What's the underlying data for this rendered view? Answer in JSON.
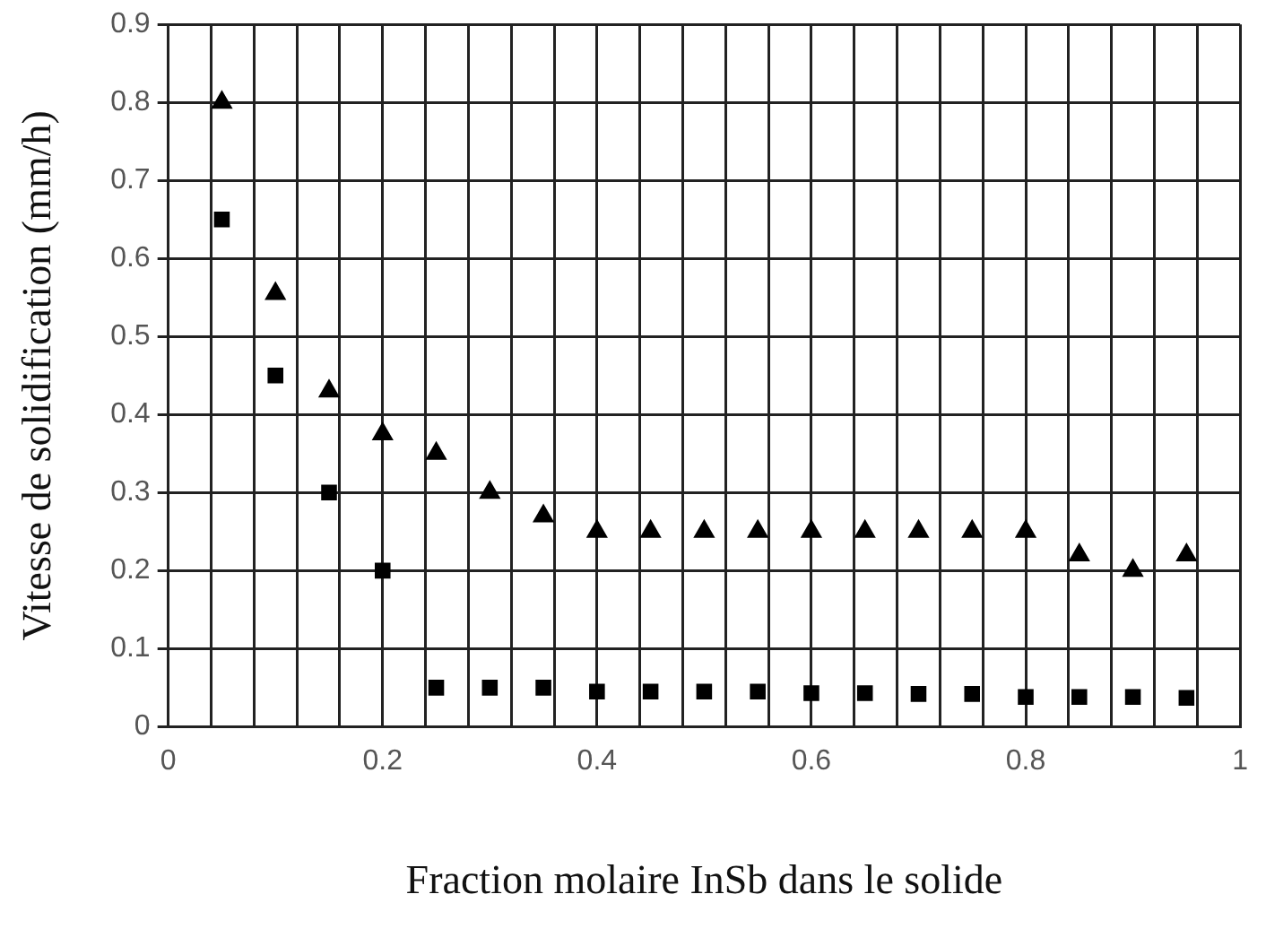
{
  "chart_data": {
    "type": "scatter",
    "xlabel": "Fraction molaire InSb dans le solide",
    "ylabel": "Vitesse de solidification (mm/h)",
    "x": [
      0.05,
      0.1,
      0.15,
      0.2,
      0.25,
      0.3,
      0.35,
      0.4,
      0.45,
      0.5,
      0.55,
      0.6,
      0.65,
      0.7,
      0.75,
      0.8,
      0.85,
      0.9,
      0.95
    ],
    "series": [
      {
        "color": "#000000",
        "marker": "triangle",
        "values": [
          0.8,
          0.555,
          0.43,
          0.375,
          0.35,
          0.3,
          0.27,
          0.25,
          0.25,
          0.25,
          0.25,
          0.25,
          0.25,
          0.25,
          0.25,
          0.25,
          0.22,
          0.2,
          0.22
        ]
      },
      {
        "color": "#000000",
        "marker": "square",
        "values": [
          0.65,
          0.45,
          0.3,
          0.2,
          0.05,
          0.05,
          0.05,
          0.045,
          0.045,
          0.045,
          0.045,
          0.043,
          0.043,
          0.042,
          0.042,
          0.038,
          0.038,
          0.038,
          0.037
        ]
      }
    ],
    "xlim": [
      0,
      1
    ],
    "xticks": [
      0,
      {
        "value": 0.04,
        "label": null
      },
      {
        "value": 0.08,
        "label": null
      },
      {
        "value": 0.12,
        "label": null
      },
      {
        "value": 0.16,
        "label": null
      },
      0.2,
      {
        "value": 0.24,
        "label": null
      },
      {
        "value": 0.28,
        "label": null
      },
      {
        "value": 0.32,
        "label": null
      },
      {
        "value": 0.36,
        "label": null
      },
      0.4,
      {
        "value": 0.44,
        "label": null
      },
      {
        "value": 0.48,
        "label": null
      },
      {
        "value": 0.52,
        "label": null
      },
      {
        "value": 0.56,
        "label": null
      },
      0.6,
      {
        "value": 0.64,
        "label": null
      },
      {
        "value": 0.68,
        "label": null
      },
      {
        "value": 0.72,
        "label": null
      },
      {
        "value": 0.76,
        "label": null
      },
      0.8,
      {
        "value": 0.84,
        "label": null
      },
      {
        "value": 0.88,
        "label": null
      },
      {
        "value": 0.92,
        "label": null
      },
      {
        "value": 0.96,
        "label": null
      },
      1
    ],
    "ylim": [
      0,
      0.9
    ],
    "yticks": [
      0,
      0.1,
      0.2,
      0.3,
      0.4,
      0.5,
      0.6,
      0.7,
      0.8,
      0.9
    ],
    "grid": true
  }
}
